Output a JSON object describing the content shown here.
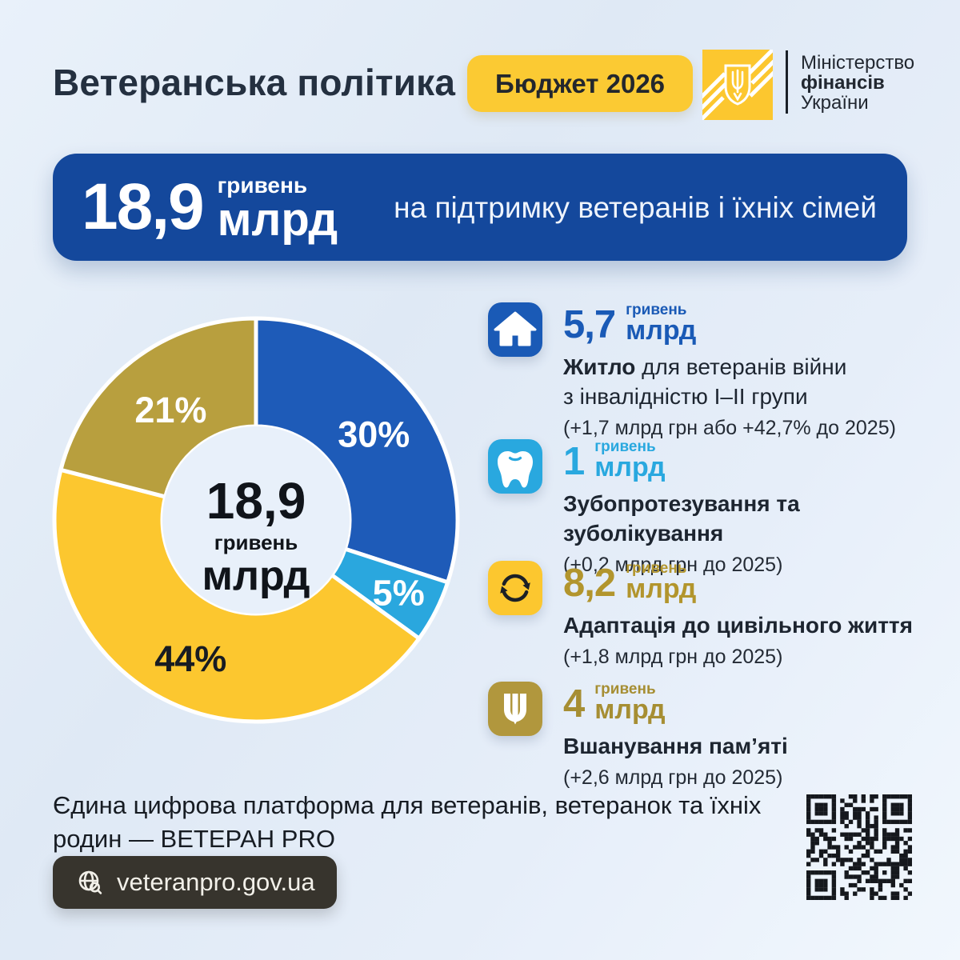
{
  "header": {
    "title": "Ветеранська політика",
    "badge": "Бюджет 2026",
    "ministry_lines": {
      "l1": "Міністерство",
      "l2": "фінансів",
      "l3": "України"
    }
  },
  "banner": {
    "amount": "18,9",
    "unit_small": "гривень",
    "unit_big": "млрд",
    "description": "на підтримку ветеранів і їхніх сімей"
  },
  "chart_data": {
    "type": "pie",
    "variant": "donut",
    "center_label": {
      "amount": "18,9",
      "unit_small": "гривень",
      "unit_big": "млрд"
    },
    "total": {
      "amount": 18.9,
      "unit": "млрд гривень"
    },
    "segments": [
      {
        "label": "30%",
        "value": 30,
        "color": "#1e5bb8",
        "label_color": "#ffffff",
        "label_r": 182,
        "category": "Житло для ветеранів війни з інвалідністю І–ІІ групи",
        "amount_bln_uah": 5.7
      },
      {
        "label": "5%",
        "value": 5,
        "color": "#2aa7de",
        "label_color": "#ffffff",
        "label_r": 200,
        "category": "Зубопротезування та зуболікування",
        "amount_bln_uah": 1
      },
      {
        "label": "44%",
        "value": 44,
        "color": "#fcc72f",
        "label_color": "#181c22",
        "label_r": 192,
        "category": "Адаптація до цивільного життя",
        "amount_bln_uah": 8.2
      },
      {
        "label": "21%",
        "value": 21,
        "color": "#b89f3e",
        "label_color": "#ffffff",
        "label_r": 174,
        "category": "Вшанування пам’яті",
        "amount_bln_uah": 4
      }
    ],
    "geometry": {
      "outer_radius": 252,
      "inner_radius": 117,
      "start_angle_deg": 0,
      "clockwise": true
    }
  },
  "items": [
    {
      "icon": "house-icon",
      "icon_bg": "#1a5ab6",
      "amount": "5,7",
      "unit_small": "гривень",
      "unit_big": "млрд",
      "amount_color": "#1a5ab6",
      "title_bold": "Житло",
      "title_rest": " для ветеранів війни",
      "title_line2": "з інвалідністю І–ІІ групи",
      "note": "(+1,7 млрд грн або +42,7% до 2025)"
    },
    {
      "icon": "tooth-icon",
      "icon_bg": "#29a8df",
      "amount": "1",
      "unit_small": "гривень",
      "unit_big": "млрд",
      "amount_color": "#29a8df",
      "title_bold": "Зубопротезування та зуболікування",
      "title_rest": "",
      "title_line2": "",
      "note": "(+0,2 млрд грн до 2025)"
    },
    {
      "icon": "refresh-icon",
      "icon_bg": "#fcc72f",
      "amount": "8,2",
      "unit_small": "гривень",
      "unit_big": "млрд",
      "amount_color": "#b2952d",
      "title_bold": "Адаптація до цивільного життя",
      "title_rest": "",
      "title_line2": "",
      "note": "(+1,8 млрд грн до 2025)"
    },
    {
      "icon": "trident-icon",
      "icon_bg": "#b1973d",
      "amount": "4",
      "unit_small": "гривень",
      "unit_big": "млрд",
      "amount_color": "#a68e33",
      "title_bold": "Вшанування пам’яті",
      "title_rest": "",
      "title_line2": "",
      "note": "(+2,6 млрд грн до 2025)"
    }
  ],
  "footer": {
    "text_line1": "Єдина цифрова платформа для ветеранів, ветеранок та їхніх",
    "text_line2": "родин — ВЕТЕРАН PRO",
    "url": "veteranpro.gov.ua",
    "qr": "qr-code"
  }
}
